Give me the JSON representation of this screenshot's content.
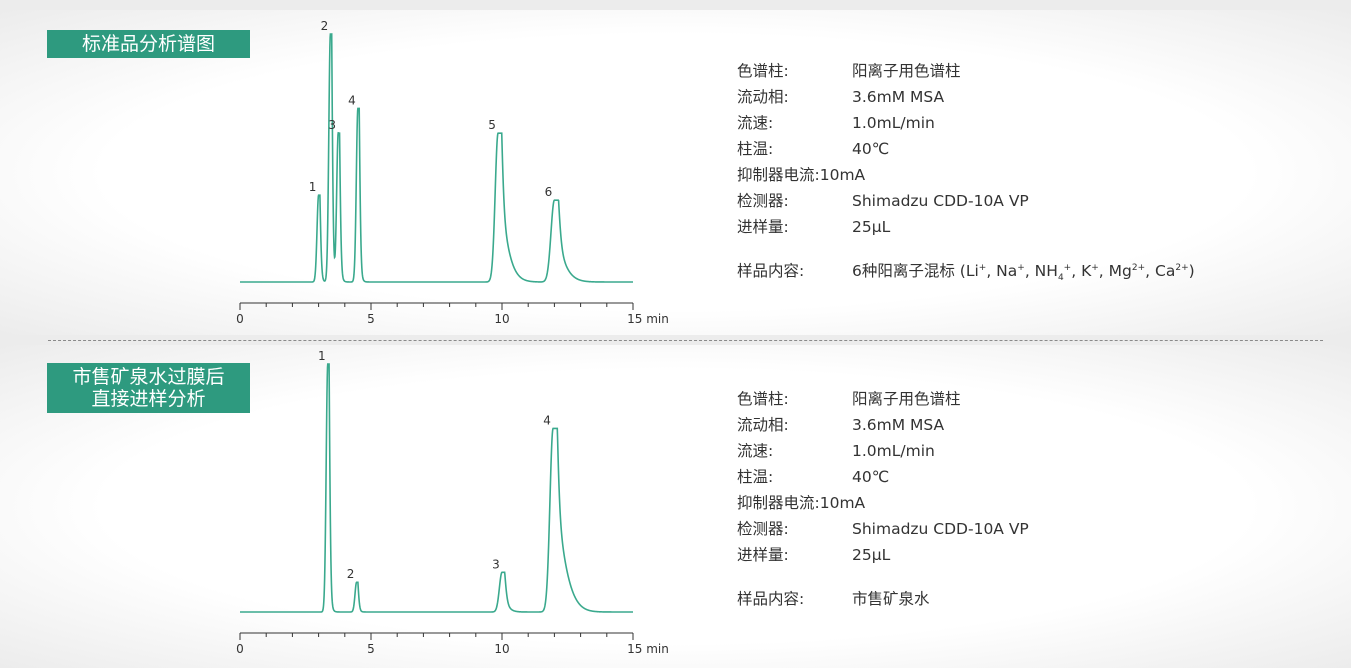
{
  "colors": {
    "accent": "#2e9a7f",
    "trace": "#3aa98d"
  },
  "panels": [
    {
      "title_lines": [
        "标准品分析谱图"
      ],
      "chart_data": {
        "type": "line",
        "xlabel": "min",
        "xlim": [
          0,
          15
        ],
        "xticks": [
          "0",
          "5",
          "10",
          "15 min"
        ],
        "baseline": 0.02,
        "peaks": [
          {
            "label": "1",
            "rt": 3.0,
            "height": 0.35,
            "width": 0.06,
            "tail": 0.05
          },
          {
            "label": "2",
            "rt": 3.45,
            "height": 1.0,
            "width": 0.06,
            "tail": 0.05
          },
          {
            "label": "3",
            "rt": 3.75,
            "height": 0.6,
            "width": 0.06,
            "tail": 0.05
          },
          {
            "label": "4",
            "rt": 4.5,
            "height": 0.7,
            "width": 0.06,
            "tail": 0.05
          },
          {
            "label": "5",
            "rt": 9.85,
            "height": 0.6,
            "width": 0.11,
            "tail": 0.35
          },
          {
            "label": "6",
            "rt": 12.0,
            "height": 0.33,
            "width": 0.13,
            "tail": 0.35
          }
        ]
      },
      "params": [
        {
          "key": "色谱柱:",
          "value": "阳离子用色谱柱"
        },
        {
          "key": "流动相:",
          "value": "3.6mM MSA"
        },
        {
          "key": "流速:",
          "value": "1.0mL/min"
        },
        {
          "key": "柱温:",
          "value": "40℃"
        },
        {
          "key": "抑制器电流:",
          "value": "10mA"
        },
        {
          "key": "检测器:",
          "value": "Shimadzu CDD-10A VP"
        },
        {
          "key": "进样量:",
          "value": "25μL"
        }
      ],
      "sample": {
        "key": "样品内容:",
        "value_prefix": "6种阳离子混标 (Li",
        "value_rest": [
          "+",
          ", Na",
          "+",
          ", NH",
          "4",
          "+",
          ", K",
          "+",
          ", Mg",
          "2+",
          ", Ca",
          "2+",
          ")"
        ]
      }
    },
    {
      "title_lines": [
        "市售矿泉水过膜后",
        "直接进样分析"
      ],
      "chart_data": {
        "type": "line",
        "xlabel": "min",
        "xlim": [
          0,
          15
        ],
        "xticks": [
          "0",
          "5",
          "10",
          "15 min"
        ],
        "baseline": 0.02,
        "peaks": [
          {
            "label": "1",
            "rt": 3.35,
            "height": 1.0,
            "width": 0.06,
            "tail": 0.05
          },
          {
            "label": "2",
            "rt": 4.45,
            "height": 0.12,
            "width": 0.06,
            "tail": 0.05
          },
          {
            "label": "3",
            "rt": 10.0,
            "height": 0.16,
            "width": 0.1,
            "tail": 0.15
          },
          {
            "label": "4",
            "rt": 11.95,
            "height": 0.74,
            "width": 0.12,
            "tail": 0.5
          }
        ]
      },
      "params": [
        {
          "key": "色谱柱:",
          "value": "阳离子用色谱柱"
        },
        {
          "key": "流动相:",
          "value": "3.6mM MSA"
        },
        {
          "key": "流速:",
          "value": "1.0mL/min"
        },
        {
          "key": "柱温:",
          "value": "40℃"
        },
        {
          "key": "抑制器电流:",
          "value": "10mA"
        },
        {
          "key": "检测器:",
          "value": "Shimadzu CDD-10A VP"
        },
        {
          "key": "进样量:",
          "value": "25μL"
        }
      ],
      "sample": {
        "key": "样品内容:",
        "value": "市售矿泉水"
      }
    }
  ]
}
